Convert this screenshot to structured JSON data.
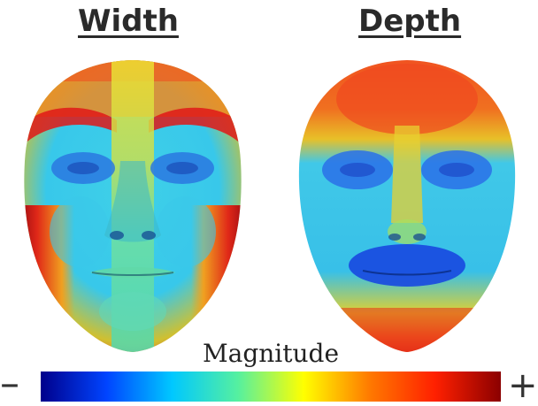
{
  "panels": [
    {
      "title": "Width"
    },
    {
      "title": "Depth"
    }
  ],
  "colorbar": {
    "label": "Magnitude",
    "low_symbol": "–",
    "high_symbol": "+",
    "colors": [
      "#00008b",
      "#0044ff",
      "#00c8ff",
      "#55f0a0",
      "#ffff00",
      "#ff7a00",
      "#ff2000",
      "#8b0000"
    ]
  },
  "colors": {
    "face_mid": "#33ccee",
    "face_low": "#2277ee",
    "face_high": "#ee4422",
    "yellow": "#eedd22",
    "dark_red": "#990011"
  }
}
